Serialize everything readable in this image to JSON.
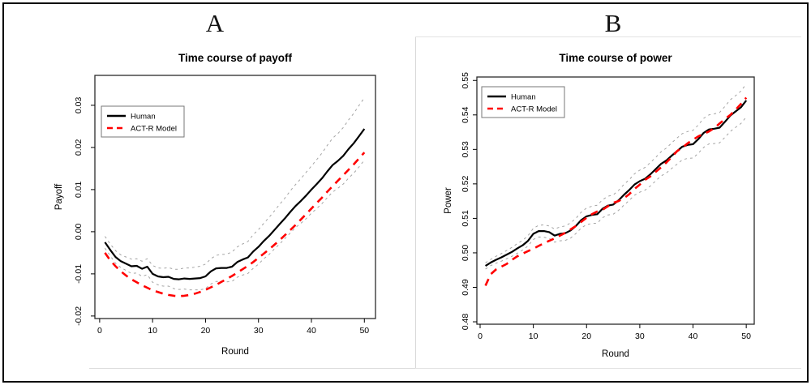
{
  "figure": {
    "panel_labels": [
      "A",
      "B"
    ],
    "background_color": "#ffffff",
    "border_color": "#000000"
  },
  "legend": {
    "entries": [
      {
        "label": "Human",
        "color": "#000000",
        "style": "solid"
      },
      {
        "label": "ACT-R Model",
        "color": "#ff0000",
        "style": "dashed"
      }
    ],
    "position": "top-left"
  },
  "chart_data": [
    {
      "type": "line",
      "panel": "A",
      "title": "Time course of payoff",
      "xlabel": "Round",
      "ylabel": "Payoff",
      "x": {
        "first": 1,
        "step": 1,
        "count": 50
      },
      "xticks": [
        0,
        10,
        20,
        30,
        40,
        50
      ],
      "yticks": [
        -0.02,
        -0.01,
        0.0,
        0.01,
        0.02,
        0.03
      ],
      "ytick_labels": [
        "-0.02",
        "-0.01",
        "0.00",
        "0.01",
        "0.02",
        "0.03"
      ],
      "xlim": [
        -0.9,
        52.1
      ],
      "ylim": [
        -0.0206,
        0.0371
      ],
      "grid": false,
      "legend_position": "top-left",
      "series": [
        {
          "name": "Human",
          "color": "#000000",
          "style": "solid",
          "width": 2.2,
          "values": [
            -0.0025,
            -0.0043,
            -0.006,
            -0.007,
            -0.0076,
            -0.0082,
            -0.0081,
            -0.0088,
            -0.0083,
            -0.01,
            -0.0106,
            -0.0108,
            -0.0107,
            -0.0112,
            -0.0113,
            -0.0111,
            -0.0112,
            -0.0111,
            -0.011,
            -0.0106,
            -0.0094,
            -0.0087,
            -0.0086,
            -0.0086,
            -0.0083,
            -0.0072,
            -0.0066,
            -0.0061,
            -0.0047,
            -0.0036,
            -0.0022,
            -0.001,
            0.0004,
            0.0018,
            0.0032,
            0.0047,
            0.0061,
            0.0073,
            0.0086,
            0.01,
            0.0113,
            0.0127,
            0.0143,
            0.0158,
            0.0168,
            0.018,
            0.0196,
            0.021,
            0.0227,
            0.0244
          ]
        },
        {
          "name": "ACT-R Model",
          "color": "#ff0000",
          "style": "dashed",
          "width": 2.6,
          "values": [
            -0.005,
            -0.0068,
            -0.0082,
            -0.0094,
            -0.0104,
            -0.0113,
            -0.012,
            -0.0127,
            -0.0133,
            -0.0139,
            -0.0143,
            -0.0147,
            -0.015,
            -0.0152,
            -0.0153,
            -0.0152,
            -0.015,
            -0.0147,
            -0.0143,
            -0.0138,
            -0.0132,
            -0.0126,
            -0.0119,
            -0.0112,
            -0.0105,
            -0.0097,
            -0.0089,
            -0.0081,
            -0.0072,
            -0.0062,
            -0.0052,
            -0.0042,
            -0.0031,
            -0.002,
            -0.0008,
            0.0004,
            0.0016,
            0.0029,
            0.0042,
            0.0055,
            0.0068,
            0.0081,
            0.0095,
            0.0108,
            0.0121,
            0.0134,
            0.0147,
            0.016,
            0.0174,
            0.0188
          ]
        },
        {
          "name": "CI upper (Human)",
          "color": "#a4a4a4",
          "style": "dotted",
          "width": 1,
          "values": [
            -0.0011,
            -0.0029,
            -0.0045,
            -0.0055,
            -0.006,
            -0.0065,
            -0.0064,
            -0.007,
            -0.0064,
            -0.008,
            -0.0086,
            -0.0087,
            -0.0085,
            -0.0089,
            -0.0089,
            -0.0086,
            -0.0086,
            -0.0084,
            -0.0082,
            -0.0077,
            -0.0064,
            -0.0056,
            -0.0054,
            -0.0053,
            -0.0048,
            -0.0036,
            -0.0029,
            -0.0023,
            -0.0007,
            0.0005,
            0.002,
            0.0034,
            0.0049,
            0.0065,
            0.008,
            0.0097,
            0.0112,
            0.0126,
            0.0141,
            0.0156,
            0.0171,
            0.0187,
            0.0205,
            0.0222,
            0.0233,
            0.0247,
            0.0265,
            0.0281,
            0.03,
            0.0318
          ]
        },
        {
          "name": "CI lower (Human)",
          "color": "#a4a4a4",
          "style": "dotted",
          "width": 1,
          "values": [
            -0.0039,
            -0.0057,
            -0.0075,
            -0.0085,
            -0.0092,
            -0.0099,
            -0.0098,
            -0.0106,
            -0.0102,
            -0.012,
            -0.0126,
            -0.0129,
            -0.0129,
            -0.0135,
            -0.0137,
            -0.0136,
            -0.0138,
            -0.0138,
            -0.0138,
            -0.0135,
            -0.0124,
            -0.0118,
            -0.0118,
            -0.0119,
            -0.0118,
            -0.0108,
            -0.0103,
            -0.0099,
            -0.0087,
            -0.0077,
            -0.0064,
            -0.0054,
            -0.0041,
            -0.0029,
            -0.0016,
            -0.0003,
            0.001,
            0.002,
            0.0031,
            0.0044,
            0.0055,
            0.0067,
            0.0081,
            0.0094,
            0.0103,
            0.0113,
            0.0127,
            0.0139,
            0.0154,
            0.017
          ]
        }
      ]
    },
    {
      "type": "line",
      "panel": "B",
      "title": "Time course of power",
      "xlabel": "Round",
      "ylabel": "Power",
      "x": {
        "first": 1,
        "step": 1,
        "count": 50
      },
      "xticks": [
        0,
        10,
        20,
        30,
        40,
        50
      ],
      "yticks": [
        0.48,
        0.49,
        0.5,
        0.51,
        0.52,
        0.53,
        0.54,
        0.55
      ],
      "ytick_labels": [
        "0.48",
        "0.49",
        "0.50",
        "0.51",
        "0.52",
        "0.53",
        "0.54",
        "0.55"
      ],
      "xlim": [
        -0.61,
        51.5
      ],
      "ylim": [
        0.4793,
        0.551
      ],
      "grid": false,
      "legend_position": "top-left",
      "series": [
        {
          "name": "Human",
          "color": "#000000",
          "style": "solid",
          "width": 2.2,
          "values": [
            0.4962,
            0.4972,
            0.498,
            0.4987,
            0.4995,
            0.5003,
            0.5013,
            0.5022,
            0.5035,
            0.5055,
            0.5063,
            0.5063,
            0.506,
            0.505,
            0.5055,
            0.5057,
            0.5065,
            0.5078,
            0.5095,
            0.5106,
            0.511,
            0.5112,
            0.5128,
            0.5137,
            0.514,
            0.5152,
            0.5168,
            0.5182,
            0.5198,
            0.5208,
            0.5215,
            0.5228,
            0.5243,
            0.5258,
            0.5268,
            0.5282,
            0.5295,
            0.5308,
            0.5313,
            0.5315,
            0.533,
            0.5348,
            0.5358,
            0.536,
            0.5363,
            0.538,
            0.5398,
            0.541,
            0.5422,
            0.5442
          ]
        },
        {
          "name": "ACT-R Model",
          "color": "#ff0000",
          "style": "dashed",
          "width": 2.6,
          "values": [
            0.4905,
            0.4938,
            0.4952,
            0.496,
            0.4968,
            0.498,
            0.499,
            0.4998,
            0.5005,
            0.5012,
            0.502,
            0.5028,
            0.5035,
            0.5042,
            0.505,
            0.5058,
            0.5068,
            0.5078,
            0.509,
            0.5102,
            0.5112,
            0.512,
            0.5125,
            0.5135,
            0.5145,
            0.515,
            0.5158,
            0.517,
            0.5185,
            0.5198,
            0.5212,
            0.5222,
            0.5235,
            0.5248,
            0.5262,
            0.5278,
            0.5295,
            0.5305,
            0.5318,
            0.5328,
            0.5338,
            0.5345,
            0.5352,
            0.5362,
            0.5375,
            0.5388,
            0.54,
            0.5415,
            0.5432,
            0.545
          ]
        },
        {
          "name": "CI upper (Human)",
          "color": "#a4a4a4",
          "style": "dotted",
          "width": 1,
          "values": [
            0.4971,
            0.4981,
            0.499,
            0.4998,
            0.5007,
            0.5016,
            0.5027,
            0.5036,
            0.505,
            0.5071,
            0.508,
            0.5081,
            0.5078,
            0.5069,
            0.5075,
            0.5078,
            0.5087,
            0.51,
            0.5118,
            0.513,
            0.5135,
            0.5138,
            0.5154,
            0.5164,
            0.5168,
            0.5181,
            0.5198,
            0.5212,
            0.5229,
            0.524,
            0.5248,
            0.5262,
            0.5277,
            0.5293,
            0.5304,
            0.5319,
            0.5333,
            0.5346,
            0.5352,
            0.5355,
            0.5371,
            0.539,
            0.54,
            0.5403,
            0.5407,
            0.5425,
            0.5444,
            0.5456,
            0.5469,
            0.549
          ]
        },
        {
          "name": "CI lower (Human)",
          "color": "#a4a4a4",
          "style": "dotted",
          "width": 1,
          "values": [
            0.4953,
            0.4963,
            0.497,
            0.4976,
            0.4983,
            0.499,
            0.4999,
            0.5008,
            0.502,
            0.5039,
            0.5046,
            0.5045,
            0.5042,
            0.5031,
            0.5035,
            0.5036,
            0.5043,
            0.5056,
            0.5072,
            0.5082,
            0.5085,
            0.5086,
            0.5102,
            0.511,
            0.5112,
            0.5123,
            0.5138,
            0.5152,
            0.5167,
            0.5176,
            0.5182,
            0.5194,
            0.5209,
            0.5223,
            0.5232,
            0.5245,
            0.5257,
            0.527,
            0.5274,
            0.5275,
            0.5289,
            0.5306,
            0.5316,
            0.5317,
            0.5319,
            0.5335,
            0.5352,
            0.5364,
            0.5375,
            0.5394
          ]
        }
      ]
    }
  ]
}
